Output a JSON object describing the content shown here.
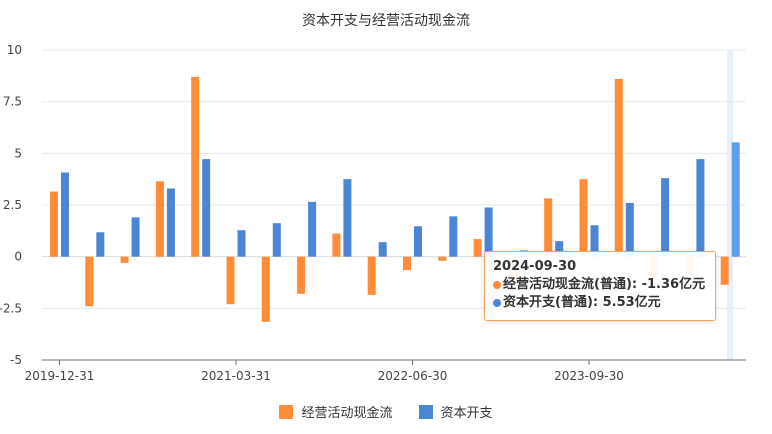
{
  "chart_data": {
    "type": "bar",
    "title": "资本开支与经营活动现金流",
    "xlabel": "",
    "ylabel": "",
    "ylim": [
      -5,
      10
    ],
    "yticks": [
      "10",
      "7.5",
      "5",
      "2.5",
      "0",
      "-2.5",
      "-5"
    ],
    "x_tick_labels": [
      "2019-12-31",
      "2021-03-31",
      "2022-06-30",
      "2023-09-30"
    ],
    "grid": true,
    "legend_position": "bottom",
    "series": [
      {
        "name": "经营活动现金流",
        "color": "#ff8c38",
        "values": [
          3.15,
          -2.4,
          -0.3,
          3.65,
          8.7,
          -2.3,
          -3.15,
          -1.8,
          1.12,
          -1.85,
          -0.65,
          -0.2,
          0.85,
          -1.2,
          2.82,
          3.75,
          8.6,
          -1.1,
          -1.0,
          -1.36
        ]
      },
      {
        "name": "资本开支",
        "color": "#4a86d3",
        "values": [
          4.07,
          1.18,
          1.9,
          3.3,
          4.72,
          1.28,
          1.62,
          2.65,
          3.75,
          0.7,
          1.47,
          1.95,
          2.38,
          0.3,
          0.75,
          1.52,
          2.6,
          3.8,
          4.72,
          5.53
        ]
      }
    ]
  },
  "tooltip": {
    "date": "2024-09-30",
    "line1": "经营活动现金流(普通): -1.36亿元",
    "line2": "资本开支(普通): 5.53亿元"
  },
  "legend": {
    "item1": "经营活动现金流",
    "item2": "资本开支"
  }
}
